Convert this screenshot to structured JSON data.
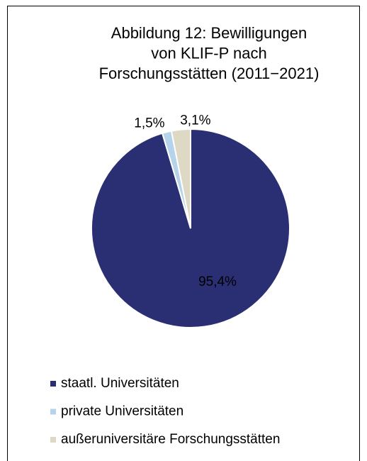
{
  "chart_data": {
    "type": "pie",
    "title": [
      "Abbildung 12: Bewilligungen",
      "von KLIF-P nach",
      "Forschungsstätten (2011−2021)"
    ],
    "categories": [
      "staatl. Universitäten",
      "private Universitäten",
      "außeruniversitäre Forschungsstätten"
    ],
    "values": [
      95.4,
      1.5,
      3.1
    ],
    "value_labels": [
      "95,4%",
      "1,5%",
      "3,1%"
    ],
    "colors": [
      "#2a2e72",
      "#b5d3ea",
      "#ddd9c5"
    ],
    "legend": "bottom"
  }
}
